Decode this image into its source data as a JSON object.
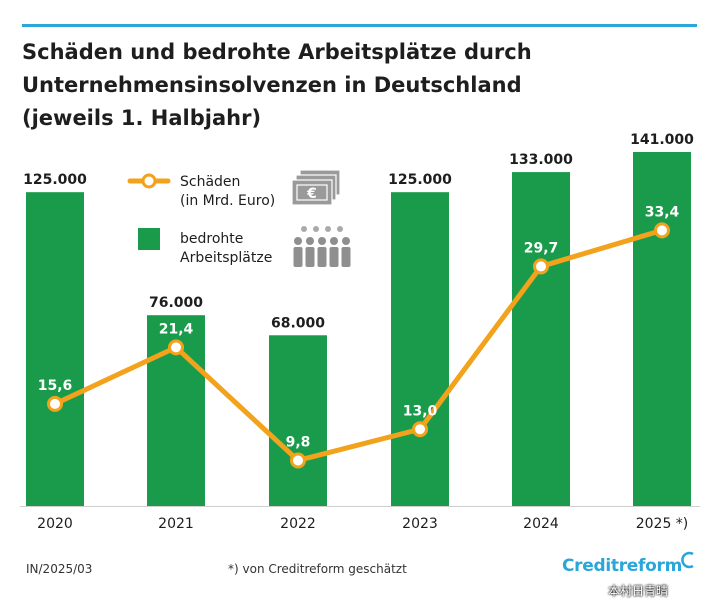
{
  "title_lines": [
    "Schäden und bedrohte Arbeitsplätze durch",
    "Unternehmensinsolvenzen in Deutschland",
    "(jeweils 1. Halbjahr)"
  ],
  "legend": {
    "line_label_lines": [
      "Schäden",
      "(in Mrd. Euro)"
    ],
    "bar_label_lines": [
      "bedrohte",
      "Arbeitsplätze"
    ],
    "euro_icon": "euro-banknotes-icon",
    "people_icon": "people-group-icon"
  },
  "chart_data": {
    "type": "bar+line",
    "categories": [
      "2020",
      "2021",
      "2022",
      "2023",
      "2024",
      "2025 *)"
    ],
    "series": [
      {
        "name": "bedrohte Arbeitsplätze",
        "type": "bar",
        "values": [
          125000,
          76000,
          68000,
          125000,
          133000,
          141000
        ],
        "labels": [
          "125.000",
          "76.000",
          "68.000",
          "125.000",
          "133.000",
          "141.000"
        ]
      },
      {
        "name": "Schäden (in Mrd. Euro)",
        "type": "line",
        "values": [
          15.6,
          21.4,
          9.8,
          13.0,
          29.7,
          33.4
        ],
        "labels": [
          "15,6",
          "21,4",
          "9,8",
          "13,0",
          "29,7",
          "33,4"
        ]
      }
    ],
    "colors": {
      "bar": "#1a9b4b",
      "line": "#f2a21b",
      "marker_fill": "#ffffff",
      "bar_label_on_bar": "#ffffff"
    }
  },
  "footer": {
    "left": "IN/2025/03",
    "note": "*) von Creditreform geschätzt",
    "logo": "Creditreform",
    "watermark": "本村日青晴"
  },
  "accent_color": "#2aa6d8"
}
